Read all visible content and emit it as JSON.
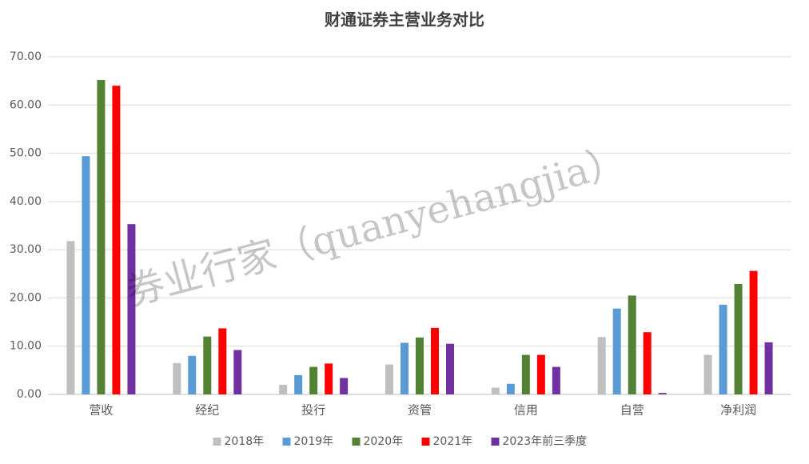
{
  "chart_data": {
    "type": "bar",
    "title": "财通证券主营业务对比",
    "watermark": "券业行家（quanyehangjia）",
    "categories": [
      "营收",
      "经纪",
      "投行",
      "资管",
      "信用",
      "自营",
      "净利润"
    ],
    "series": [
      {
        "name": "2018年",
        "color": "#bfbfbf",
        "values": [
          31.8,
          6.5,
          2.0,
          6.2,
          1.4,
          11.9,
          8.2
        ]
      },
      {
        "name": "2019年",
        "color": "#5b9bd5",
        "values": [
          49.4,
          8.0,
          4.0,
          10.7,
          2.2,
          17.8,
          18.6
        ]
      },
      {
        "name": "2020年",
        "color": "#548235",
        "values": [
          65.2,
          12.0,
          5.7,
          11.8,
          8.2,
          20.5,
          22.9
        ]
      },
      {
        "name": "2021年",
        "color": "#ff0000",
        "values": [
          64.0,
          13.7,
          6.4,
          13.8,
          8.2,
          12.9,
          25.6
        ]
      },
      {
        "name": "2023年前三季度",
        "color": "#7030a0",
        "values": [
          35.3,
          9.2,
          3.4,
          10.5,
          5.7,
          0.3,
          10.8
        ]
      }
    ],
    "ylim": [
      0,
      70
    ],
    "yticks": [
      {
        "value": 0,
        "label": "0.00"
      },
      {
        "value": 10,
        "label": "10.00"
      },
      {
        "value": 20,
        "label": "20.00"
      },
      {
        "value": 30,
        "label": "30.00"
      },
      {
        "value": 40,
        "label": "40.00"
      },
      {
        "value": 50,
        "label": "50.00"
      },
      {
        "value": 60,
        "label": "60.00"
      },
      {
        "value": 70,
        "label": "70.00"
      }
    ],
    "grid": true,
    "legend": "bottom"
  }
}
